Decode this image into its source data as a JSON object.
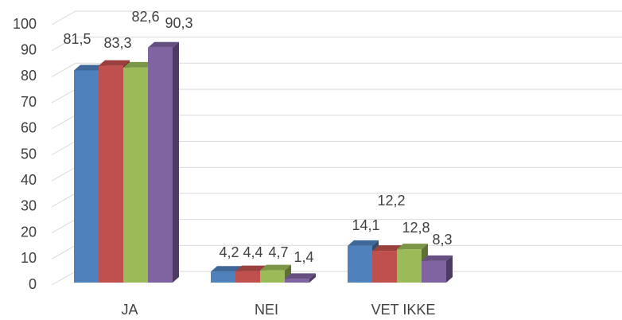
{
  "chart_data": {
    "type": "bar3d",
    "categories": [
      "JA",
      "NEI",
      "VET IKKE"
    ],
    "series": [
      {
        "color": "#4f81bd",
        "values": [
          81.5,
          4.2,
          14.1
        ],
        "value_labels": [
          "81,5",
          "4,2",
          "14,1"
        ]
      },
      {
        "color": "#c0504d",
        "values": [
          83.3,
          4.4,
          12.2
        ],
        "value_labels": [
          "83,3",
          "4,4",
          "12,2"
        ]
      },
      {
        "color": "#9bbb59",
        "values": [
          82.6,
          4.7,
          12.8
        ],
        "value_labels": [
          "82,6",
          "4,7",
          "12,8"
        ]
      },
      {
        "color": "#8064a2",
        "values": [
          90.3,
          1.4,
          8.3
        ],
        "value_labels": [
          "90,3",
          "1,4",
          "8,3"
        ]
      }
    ],
    "ylim": [
      0,
      100
    ],
    "yticks": [
      0,
      10,
      20,
      30,
      40,
      50,
      60,
      70,
      80,
      90,
      100
    ],
    "grid": true
  }
}
